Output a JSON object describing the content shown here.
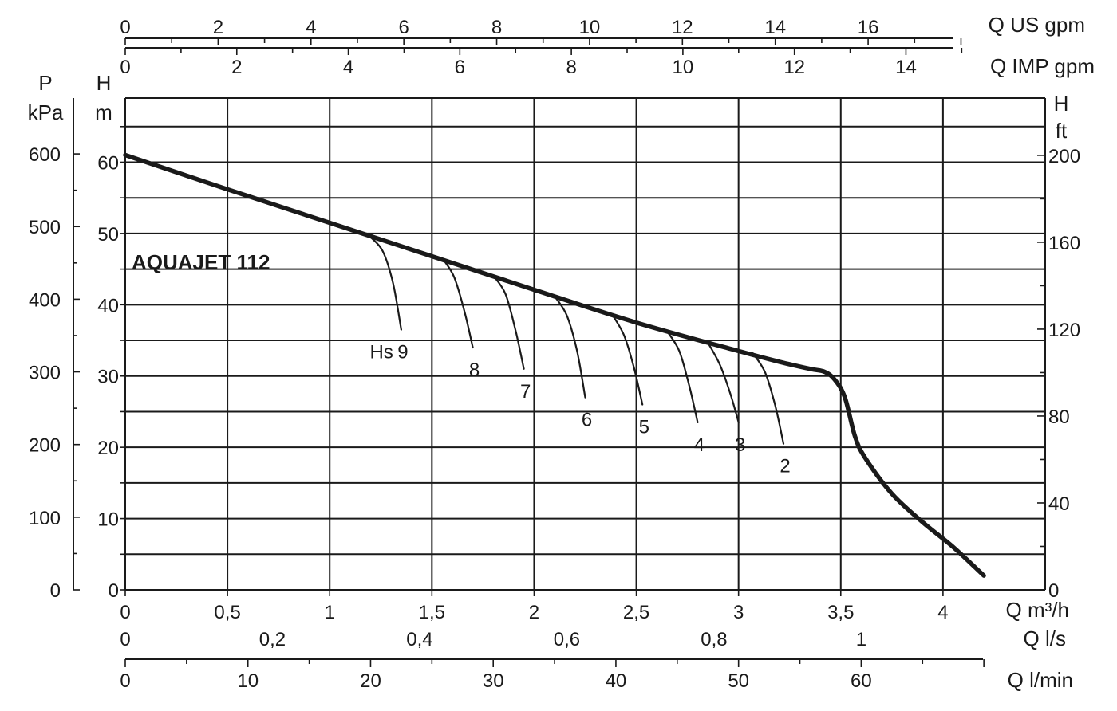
{
  "chart_data": {
    "type": "line",
    "title": "AQUAJET 112",
    "grid": true,
    "primary_x_axis": {
      "unit_label": "Q m³/h",
      "range": [
        0,
        4.5
      ],
      "ticks": [
        0,
        0.5,
        1,
        1.5,
        2,
        2.5,
        3,
        3.5,
        4
      ],
      "tick_labels": [
        "0",
        "0,5",
        "1",
        "1,5",
        "2",
        "2,5",
        "3",
        "3,5",
        "4"
      ]
    },
    "primary_y_axis": {
      "unit_label_line1": "H",
      "unit_label_line2": "m",
      "range": [
        0,
        69
      ],
      "ticks": [
        0,
        10,
        20,
        30,
        40,
        50,
        60
      ],
      "tick_labels": [
        "0",
        "10",
        "20",
        "30",
        "40",
        "50",
        "60"
      ]
    },
    "pressure_axis": {
      "unit_label_line1": "P",
      "unit_label_line2": "kPa",
      "ticks": [
        0,
        100,
        200,
        300,
        400,
        500,
        600
      ],
      "tick_labels": [
        "0",
        "100",
        "200",
        "300",
        "400",
        "500",
        "600"
      ]
    },
    "feet_axis": {
      "unit_label_line1": "H",
      "unit_label_line2": "ft",
      "ticks": [
        0,
        40,
        80,
        120,
        160,
        200
      ],
      "tick_labels": [
        "0",
        "40",
        "80",
        "120",
        "160",
        "200"
      ]
    },
    "us_gpm_axis": {
      "unit_label": "Q US gpm",
      "ticks": [
        0,
        2,
        4,
        6,
        8,
        10,
        12,
        14,
        16
      ],
      "tick_labels": [
        "0",
        "2",
        "4",
        "6",
        "8",
        "10",
        "12",
        "14",
        "16"
      ]
    },
    "imp_gpm_axis": {
      "unit_label": "Q IMP gpm",
      "ticks": [
        0,
        2,
        4,
        6,
        8,
        10,
        12,
        14
      ],
      "tick_labels": [
        "0",
        "2",
        "4",
        "6",
        "8",
        "10",
        "12",
        "14"
      ]
    },
    "ls_axis": {
      "unit_label": "Q l/s",
      "ticks": [
        0,
        0.2,
        0.4,
        0.6,
        0.8,
        1
      ],
      "tick_labels": [
        "0",
        "0,2",
        "0,4",
        "0,6",
        "0,8",
        "1"
      ]
    },
    "lmin_axis": {
      "unit_label": "Q l/min",
      "ticks": [
        0,
        10,
        20,
        30,
        40,
        50,
        60
      ],
      "tick_labels": [
        "0",
        "10",
        "20",
        "30",
        "40",
        "50",
        "60"
      ]
    },
    "series": [
      {
        "x": [
          0,
          0.5,
          1,
          1.5,
          2,
          2.5,
          3,
          3.2,
          3.35,
          3.42,
          3.47,
          3.52,
          3.57,
          3.62,
          3.75,
          3.9,
          4.05,
          4.2
        ],
        "y": [
          61,
          56.2,
          51.5,
          46.8,
          42.1,
          37.5,
          33.5,
          32,
          31,
          30.6,
          29.5,
          27,
          21.5,
          18.5,
          13.5,
          9.5,
          6,
          2
        ]
      }
    ],
    "hs_label": "Hs",
    "hs_curves": [
      {
        "label": "9",
        "x": [
          1.2,
          1.26,
          1.31,
          1.35
        ],
        "y": [
          49.5,
          47.5,
          43,
          36.5
        ]
      },
      {
        "label": "8",
        "x": [
          1.56,
          1.61,
          1.66,
          1.7
        ],
        "y": [
          46.2,
          43.8,
          39,
          34
        ]
      },
      {
        "label": "7",
        "x": [
          1.8,
          1.86,
          1.91,
          1.95
        ],
        "y": [
          44.1,
          41.5,
          36.3,
          31
        ]
      },
      {
        "label": "6",
        "x": [
          2.1,
          2.16,
          2.21,
          2.25
        ],
        "y": [
          41.2,
          38.5,
          33.5,
          27
        ]
      },
      {
        "label": "5",
        "x": [
          2.38,
          2.44,
          2.49,
          2.53
        ],
        "y": [
          38.7,
          35.7,
          31,
          26
        ]
      },
      {
        "label": "4",
        "x": [
          2.65,
          2.71,
          2.76,
          2.8
        ],
        "y": [
          36.3,
          33.5,
          28.5,
          23.5
        ]
      },
      {
        "label": "3",
        "x": [
          2.85,
          2.91,
          2.96,
          3
        ],
        "y": [
          34.7,
          31.5,
          27.5,
          23.5
        ]
      },
      {
        "label": "2",
        "x": [
          3.07,
          3.13,
          3.18,
          3.22
        ],
        "y": [
          33.2,
          30.5,
          25.8,
          20.5
        ]
      }
    ]
  }
}
